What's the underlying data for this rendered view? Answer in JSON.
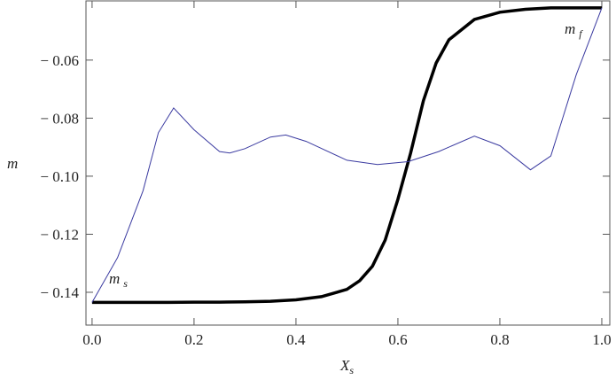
{
  "chart_data": {
    "type": "line",
    "x_label": {
      "text": "X",
      "sub": "s"
    },
    "y_label": "m",
    "xlim": [
      -0.012,
      1.0157
    ],
    "ylim": [
      -0.1513,
      -0.0396
    ],
    "xticks": [
      {
        "value": 0,
        "label": "0.0"
      },
      0.2,
      0.4,
      0.6,
      0.8,
      {
        "value": 1,
        "label": "1.0"
      }
    ],
    "yticks": [
      {
        "value": -0.14,
        "label": "− 0.14"
      },
      {
        "value": -0.12,
        "label": "− 0.12"
      },
      {
        "value": -0.1,
        "label": "− 0.10"
      },
      {
        "value": -0.08,
        "label": "− 0.08"
      },
      {
        "value": -0.06,
        "label": "− 0.06"
      }
    ],
    "series": [
      {
        "color": "#000000",
        "x": [
          0,
          0.05,
          0.1,
          0.15,
          0.2,
          0.25,
          0.3,
          0.35,
          0.4,
          0.45,
          0.5,
          0.525,
          0.55,
          0.575,
          0.6,
          0.625,
          0.65,
          0.675,
          0.7,
          0.75,
          0.8,
          0.85,
          0.9,
          0.95,
          1.0
        ],
        "values": [
          -0.1435,
          -0.1435,
          -0.1435,
          -0.1435,
          -0.1434,
          -0.1434,
          -0.1433,
          -0.1431,
          -0.1426,
          -0.1415,
          -0.139,
          -0.136,
          -0.131,
          -0.122,
          -0.108,
          -0.092,
          -0.074,
          -0.061,
          -0.053,
          -0.046,
          -0.0435,
          -0.0425,
          -0.042,
          -0.042,
          -0.042
        ]
      },
      {
        "color": "#3a3aa0",
        "x": [
          0,
          0.05,
          0.1,
          0.13,
          0.16,
          0.2,
          0.25,
          0.27,
          0.3,
          0.35,
          0.38,
          0.42,
          0.5,
          0.56,
          0.62,
          0.68,
          0.75,
          0.8,
          0.86,
          0.9,
          0.95,
          1.0
        ],
        "values": [
          -0.1435,
          -0.128,
          -0.105,
          -0.085,
          -0.0765,
          -0.084,
          -0.0915,
          -0.092,
          -0.0905,
          -0.0865,
          -0.0858,
          -0.088,
          -0.0945,
          -0.096,
          -0.095,
          -0.0915,
          -0.0862,
          -0.0895,
          -0.0978,
          -0.093,
          -0.065,
          -0.042
        ]
      }
    ],
    "annotations": [
      {
        "text": "m",
        "sub": "s"
      },
      {
        "text": "m",
        "sub": "f"
      }
    ]
  }
}
